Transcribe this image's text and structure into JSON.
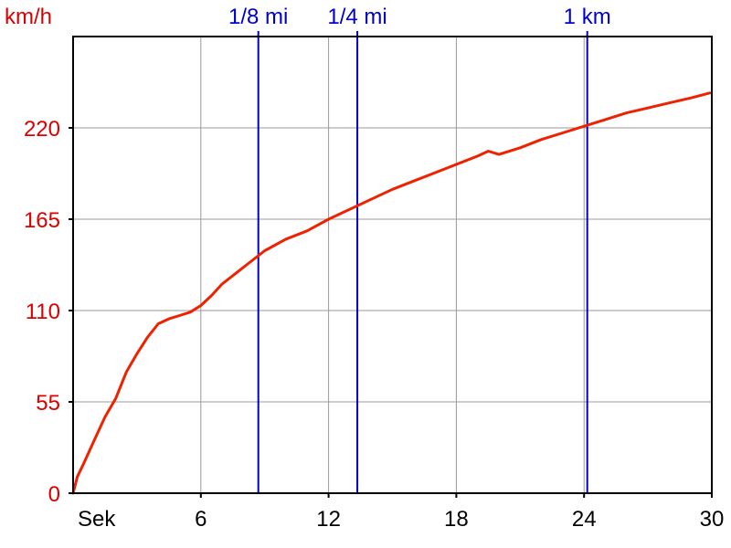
{
  "chart_data": {
    "type": "line",
    "ylabel": "km/h",
    "xlabel": "Sek",
    "xlim": [
      0,
      30
    ],
    "ylim": [
      0,
      275
    ],
    "x_ticks": [
      6,
      12,
      18,
      24,
      30
    ],
    "y_ticks": [
      0,
      55,
      110,
      165,
      220
    ],
    "grid": true,
    "series": [
      {
        "color": "#ee2200",
        "x": [
          0,
          0.2,
          0.5,
          1.0,
          1.5,
          2.0,
          2.5,
          3.0,
          3.5,
          4.0,
          4.5,
          5.0,
          5.5,
          6.0,
          6.5,
          7.0,
          7.5,
          8.0,
          9.0,
          10.0,
          11.0,
          12.0,
          13.0,
          14.0,
          15.0,
          16.0,
          17.0,
          18.0,
          19.0,
          19.5,
          20.0,
          21.0,
          22.0,
          23.0,
          24.0,
          25.0,
          26.0,
          27.0,
          28.0,
          29.0,
          29.9
        ],
        "values": [
          0,
          10,
          18,
          32,
          46,
          57,
          73,
          84,
          94,
          102,
          105,
          107,
          109,
          113,
          119,
          126,
          131,
          136,
          146,
          153,
          158,
          165,
          171,
          177,
          183,
          188,
          193,
          198,
          203,
          206,
          204,
          208,
          213,
          217,
          221,
          225,
          229,
          232,
          235,
          238,
          241
        ]
      }
    ],
    "markers": [
      {
        "label": "1/8 mi",
        "x": 8.7
      },
      {
        "label": "1/4 mi",
        "x": 13.35
      },
      {
        "label": "1 km",
        "x": 24.15
      }
    ]
  },
  "colors": {
    "speed_text": "#dd0000",
    "marker_blue": "#0000cc",
    "grid": "#999999",
    "axis": "#000000",
    "curve": "#ee2200"
  }
}
